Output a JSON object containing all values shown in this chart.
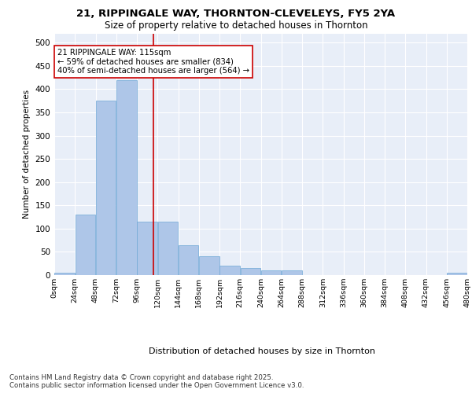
{
  "title": "21, RIPPINGALE WAY, THORNTON-CLEVELEYS, FY5 2YA",
  "subtitle": "Size of property relative to detached houses in Thornton",
  "xlabel": "Distribution of detached houses by size in Thornton",
  "ylabel": "Number of detached properties",
  "bin_edges": [
    0,
    24,
    48,
    72,
    96,
    120,
    144,
    168,
    192,
    216,
    240,
    264,
    288,
    312,
    336,
    360,
    384,
    408,
    432,
    456,
    480
  ],
  "bar_heights": [
    5,
    130,
    375,
    420,
    115,
    115,
    65,
    40,
    20,
    15,
    10,
    10,
    0,
    0,
    0,
    0,
    0,
    0,
    0,
    5
  ],
  "bar_color": "#aec6e8",
  "bar_edgecolor": "#6fa8d6",
  "vline_x": 115,
  "vline_color": "#cc0000",
  "annotation_text": "21 RIPPINGALE WAY: 115sqm\n← 59% of detached houses are smaller (834)\n40% of semi-detached houses are larger (564) →",
  "annotation_boxcolor": "white",
  "annotation_edgecolor": "#cc0000",
  "ylim": [
    0,
    520
  ],
  "yticks": [
    0,
    50,
    100,
    150,
    200,
    250,
    300,
    350,
    400,
    450,
    500
  ],
  "background_color": "#e8eef8",
  "footer": "Contains HM Land Registry data © Crown copyright and database right 2025.\nContains public sector information licensed under the Open Government Licence v3.0.",
  "tick_labels": [
    "0sqm",
    "24sqm",
    "48sqm",
    "72sqm",
    "96sqm",
    "120sqm",
    "144sqm",
    "168sqm",
    "192sqm",
    "216sqm",
    "240sqm",
    "264sqm",
    "288sqm",
    "312sqm",
    "336sqm",
    "360sqm",
    "384sqm",
    "408sqm",
    "432sqm",
    "456sqm",
    "480sqm"
  ]
}
